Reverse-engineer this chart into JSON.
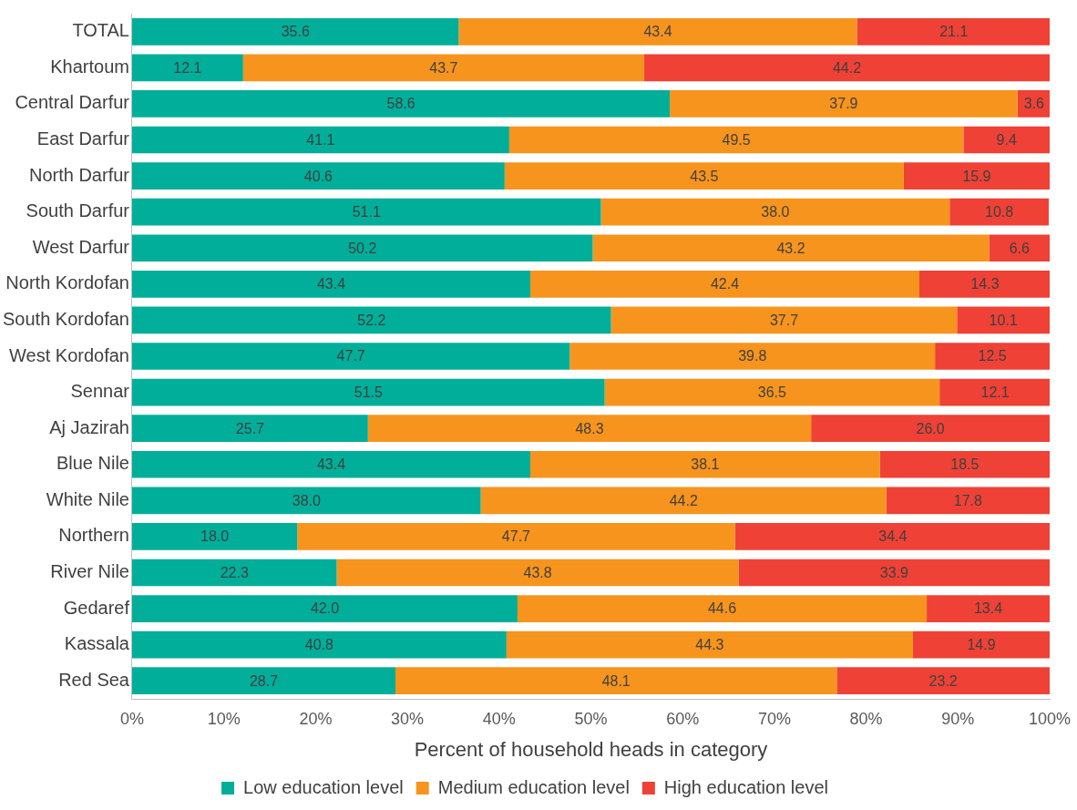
{
  "chart_data": {
    "type": "bar",
    "orientation": "horizontal",
    "stacked": true,
    "xlabel": "Percent of household heads in category",
    "categories": [
      "TOTAL",
      "Khartoum",
      "Central Darfur",
      "East Darfur",
      "North Darfur",
      "South Darfur",
      "West Darfur",
      "North Kordofan",
      "South Kordofan",
      "West Kordofan",
      "Sennar",
      "Aj Jazirah",
      "Blue Nile",
      "White Nile",
      "Northern",
      "River Nile",
      "Gedaref",
      "Kassala",
      "Red Sea"
    ],
    "series": [
      {
        "name": "Low education level",
        "color": "#00ae9a",
        "values": [
          35.6,
          12.1,
          58.6,
          41.1,
          40.6,
          51.1,
          50.2,
          43.4,
          52.2,
          47.7,
          51.5,
          25.7,
          43.4,
          38.0,
          18.0,
          22.3,
          42.0,
          40.8,
          28.7
        ],
        "value_labels": [
          "35.6",
          "12.1",
          "58.6",
          "41.1",
          "40.6",
          "51.1",
          "50.2",
          "43.4",
          "52.2",
          "47.7",
          "51.5",
          "25.7",
          "43.4",
          "38.0",
          "18.0",
          "22.3",
          "42.0",
          "40.8",
          "28.7"
        ]
      },
      {
        "name": "Medium education level",
        "color": "#f7941d",
        "values": [
          43.4,
          43.7,
          37.9,
          49.5,
          43.5,
          38.0,
          43.2,
          42.4,
          37.7,
          39.8,
          36.5,
          48.3,
          38.1,
          44.2,
          47.7,
          43.8,
          44.6,
          44.3,
          48.1
        ],
        "value_labels": [
          "43.4",
          "43.7",
          "37.9",
          "49.5",
          "43.5",
          "38.0",
          "43.2",
          "42.4",
          "37.7",
          "39.8",
          "36.5",
          "48.3",
          "38.1",
          "44.2",
          "47.7",
          "43.8",
          "44.6",
          "44.3",
          "48.1"
        ]
      },
      {
        "name": "High education level",
        "color": "#ef4136",
        "values": [
          21.1,
          44.2,
          3.6,
          9.4,
          15.9,
          10.8,
          6.6,
          14.3,
          10.1,
          12.5,
          12.1,
          26.0,
          18.5,
          17.8,
          34.4,
          33.9,
          13.4,
          14.9,
          23.2
        ],
        "value_labels": [
          "21.1",
          "44.2",
          "3.6",
          "9.4",
          "15.9",
          "10.8",
          "6.6",
          "14.3",
          "10.1",
          "12.5",
          "12.1",
          "26.0",
          "18.5",
          "17.8",
          "34.4",
          "33.9",
          "13.4",
          "14.9",
          "23.2"
        ]
      }
    ],
    "xlim": [
      0,
      100
    ],
    "xticks": [
      {
        "value": 0,
        "label": "0%"
      },
      {
        "value": 10,
        "label": "10%"
      },
      {
        "value": 20,
        "label": "20%"
      },
      {
        "value": 30,
        "label": "30%"
      },
      {
        "value": 40,
        "label": "40%"
      },
      {
        "value": 50,
        "label": "50%"
      },
      {
        "value": 60,
        "label": "60%"
      },
      {
        "value": 70,
        "label": "70%"
      },
      {
        "value": 80,
        "label": "80%"
      },
      {
        "value": 90,
        "label": "90%"
      },
      {
        "value": 100,
        "label": "100%"
      }
    ],
    "grid": false,
    "legend": "bottom"
  }
}
